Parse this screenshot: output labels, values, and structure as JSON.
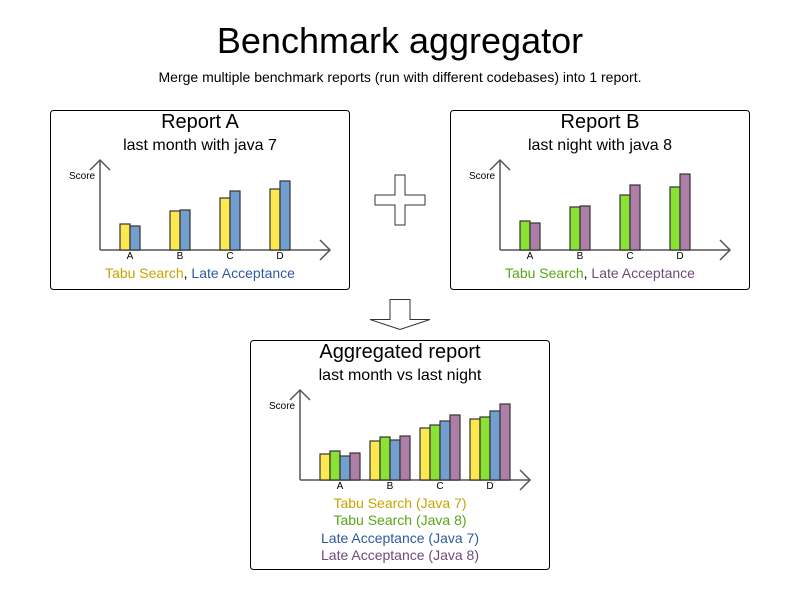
{
  "title": "Benchmark aggregator",
  "subtitle": "Merge multiple benchmark reports (run with different codebases) into 1 report.",
  "colors": {
    "tabu_java7_fill": "#fce94f",
    "tabu_java8_fill": "#8ae234",
    "late_java7_fill": "#729fcf",
    "late_java8_fill": "#ad7fa8",
    "tabu_java7_text": "#c8a400",
    "tabu_java8_text": "#5aa516",
    "late_java7_text": "#2f5aa0",
    "late_java8_text": "#704a78"
  },
  "icons": {
    "plus": "plus-icon",
    "down_arrow": "down-arrow-icon"
  },
  "chart_data": [
    {
      "type": "bar",
      "title": "Report A",
      "subtitle": "last month with java 7",
      "ylabel": "Score",
      "categories": [
        "A",
        "B",
        "C",
        "D"
      ],
      "series": [
        {
          "name": "Tabu Search",
          "values": [
            26,
            39,
            52,
            61
          ]
        },
        {
          "name": "Late Acceptance",
          "values": [
            24,
            40,
            59,
            69
          ]
        }
      ],
      "legend_sep": ", "
    },
    {
      "type": "bar",
      "title": "Report B",
      "subtitle": "last night with java 8",
      "ylabel": "Score",
      "categories": [
        "A",
        "B",
        "C",
        "D"
      ],
      "series": [
        {
          "name": "Tabu Search",
          "values": [
            29,
            43,
            55,
            63
          ]
        },
        {
          "name": "Late Acceptance",
          "values": [
            27,
            44,
            65,
            76
          ]
        }
      ],
      "legend_sep": ", "
    },
    {
      "type": "bar",
      "title": "Aggregated report",
      "subtitle": "last month vs last night",
      "ylabel": "Score",
      "categories": [
        "A",
        "B",
        "C",
        "D"
      ],
      "series": [
        {
          "name": "Tabu Search (Java 7)",
          "values": [
            26,
            39,
            52,
            61
          ]
        },
        {
          "name": "Tabu Search (Java 8)",
          "values": [
            29,
            43,
            55,
            63
          ]
        },
        {
          "name": "Late Acceptance (Java 7)",
          "values": [
            24,
            40,
            59,
            69
          ]
        },
        {
          "name": "Late Acceptance (Java 8)",
          "values": [
            27,
            44,
            65,
            76
          ]
        }
      ]
    }
  ]
}
